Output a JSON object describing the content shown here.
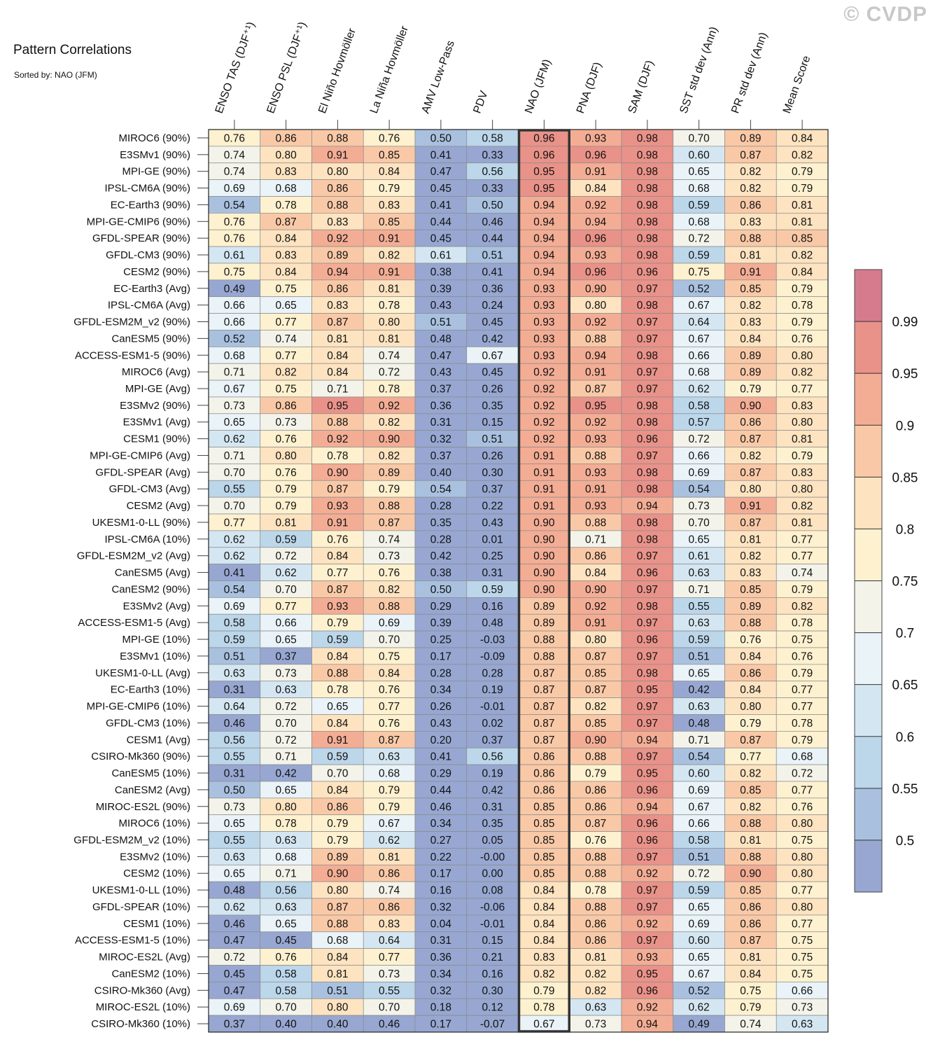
{
  "chart_data": {
    "type": "heatmap",
    "title": "Pattern Correlations",
    "subtitle": "Sorted by: NAO (JFM)",
    "watermark": "© CVDP",
    "highlight_column": "NAO (JFM)",
    "columns": [
      "ENSO TAS (DJF⁺¹)",
      "ENSO PSL (DJF⁺¹)",
      "El Niño Hovmöller",
      "La Niña Hovmöller",
      "AMV Low-Pass",
      "PDV",
      "NAO (JFM)",
      "PNA (DJF)",
      "SAM (DJF)",
      "SST std dev (Ann)",
      "PR std dev (Ann)",
      "Mean Score"
    ],
    "rows": [
      {
        "label": "MIROC6 (90%)",
        "values": [
          "0.76",
          "0.86",
          "0.88",
          "0.76",
          "0.50",
          "0.58",
          "0.96",
          "0.93",
          "0.98",
          "0.70",
          "0.89",
          "0.84"
        ]
      },
      {
        "label": "E3SMv1 (90%)",
        "values": [
          "0.74",
          "0.80",
          "0.91",
          "0.85",
          "0.41",
          "0.33",
          "0.96",
          "0.96",
          "0.98",
          "0.60",
          "0.87",
          "0.82"
        ]
      },
      {
        "label": "MPI-GE (90%)",
        "values": [
          "0.74",
          "0.83",
          "0.80",
          "0.84",
          "0.47",
          "0.56",
          "0.95",
          "0.91",
          "0.98",
          "0.65",
          "0.82",
          "0.79"
        ]
      },
      {
        "label": "IPSL-CM6A (90%)",
        "values": [
          "0.69",
          "0.68",
          "0.86",
          "0.79",
          "0.45",
          "0.33",
          "0.95",
          "0.84",
          "0.98",
          "0.68",
          "0.82",
          "0.79"
        ]
      },
      {
        "label": "EC-Earth3 (90%)",
        "values": [
          "0.54",
          "0.78",
          "0.88",
          "0.83",
          "0.41",
          "0.50",
          "0.94",
          "0.92",
          "0.98",
          "0.59",
          "0.86",
          "0.81"
        ]
      },
      {
        "label": "MPI-GE-CMIP6 (90%)",
        "values": [
          "0.76",
          "0.87",
          "0.83",
          "0.85",
          "0.44",
          "0.46",
          "0.94",
          "0.94",
          "0.98",
          "0.68",
          "0.83",
          "0.81"
        ]
      },
      {
        "label": "GFDL-SPEAR (90%)",
        "values": [
          "0.76",
          "0.84",
          "0.92",
          "0.91",
          "0.45",
          "0.44",
          "0.94",
          "0.96",
          "0.98",
          "0.72",
          "0.88",
          "0.85"
        ]
      },
      {
        "label": "GFDL-CM3 (90%)",
        "values": [
          "0.61",
          "0.83",
          "0.89",
          "0.82",
          "0.61",
          "0.51",
          "0.94",
          "0.93",
          "0.98",
          "0.59",
          "0.81",
          "0.82"
        ]
      },
      {
        "label": "CESM2 (90%)",
        "values": [
          "0.75",
          "0.84",
          "0.94",
          "0.91",
          "0.38",
          "0.41",
          "0.94",
          "0.96",
          "0.96",
          "0.75",
          "0.91",
          "0.84"
        ]
      },
      {
        "label": "EC-Earth3 (Avg)",
        "values": [
          "0.49",
          "0.75",
          "0.86",
          "0.81",
          "0.39",
          "0.36",
          "0.93",
          "0.90",
          "0.97",
          "0.52",
          "0.85",
          "0.79"
        ]
      },
      {
        "label": "IPSL-CM6A (Avg)",
        "values": [
          "0.66",
          "0.65",
          "0.83",
          "0.78",
          "0.43",
          "0.24",
          "0.93",
          "0.80",
          "0.98",
          "0.67",
          "0.82",
          "0.78"
        ]
      },
      {
        "label": "GFDL-ESM2M_v2 (90%)",
        "values": [
          "0.66",
          "0.77",
          "0.87",
          "0.80",
          "0.51",
          "0.45",
          "0.93",
          "0.92",
          "0.97",
          "0.64",
          "0.83",
          "0.79"
        ]
      },
      {
        "label": "CanESM5 (90%)",
        "values": [
          "0.52",
          "0.74",
          "0.81",
          "0.81",
          "0.48",
          "0.42",
          "0.93",
          "0.88",
          "0.97",
          "0.67",
          "0.84",
          "0.76"
        ]
      },
      {
        "label": "ACCESS-ESM1-5 (90%)",
        "values": [
          "0.68",
          "0.77",
          "0.84",
          "0.74",
          "0.47",
          "0.67",
          "0.93",
          "0.94",
          "0.98",
          "0.66",
          "0.89",
          "0.80"
        ]
      },
      {
        "label": "MIROC6 (Avg)",
        "values": [
          "0.71",
          "0.82",
          "0.84",
          "0.72",
          "0.43",
          "0.45",
          "0.92",
          "0.91",
          "0.97",
          "0.68",
          "0.89",
          "0.82"
        ]
      },
      {
        "label": "MPI-GE (Avg)",
        "values": [
          "0.67",
          "0.75",
          "0.71",
          "0.78",
          "0.37",
          "0.26",
          "0.92",
          "0.87",
          "0.97",
          "0.62",
          "0.79",
          "0.77"
        ]
      },
      {
        "label": "E3SMv2 (90%)",
        "values": [
          "0.73",
          "0.86",
          "0.95",
          "0.92",
          "0.36",
          "0.35",
          "0.92",
          "0.95",
          "0.98",
          "0.58",
          "0.90",
          "0.83"
        ]
      },
      {
        "label": "E3SMv1 (Avg)",
        "values": [
          "0.65",
          "0.73",
          "0.88",
          "0.82",
          "0.31",
          "0.15",
          "0.92",
          "0.92",
          "0.98",
          "0.57",
          "0.86",
          "0.80"
        ]
      },
      {
        "label": "CESM1 (90%)",
        "values": [
          "0.62",
          "0.76",
          "0.92",
          "0.90",
          "0.32",
          "0.51",
          "0.92",
          "0.93",
          "0.96",
          "0.72",
          "0.87",
          "0.81"
        ]
      },
      {
        "label": "MPI-GE-CMIP6 (Avg)",
        "values": [
          "0.71",
          "0.80",
          "0.78",
          "0.82",
          "0.37",
          "0.26",
          "0.91",
          "0.88",
          "0.97",
          "0.66",
          "0.82",
          "0.79"
        ]
      },
      {
        "label": "GFDL-SPEAR (Avg)",
        "values": [
          "0.70",
          "0.76",
          "0.90",
          "0.89",
          "0.40",
          "0.30",
          "0.91",
          "0.93",
          "0.98",
          "0.69",
          "0.87",
          "0.83"
        ]
      },
      {
        "label": "GFDL-CM3 (Avg)",
        "values": [
          "0.55",
          "0.79",
          "0.87",
          "0.79",
          "0.54",
          "0.37",
          "0.91",
          "0.91",
          "0.98",
          "0.54",
          "0.80",
          "0.80"
        ]
      },
      {
        "label": "CESM2 (Avg)",
        "values": [
          "0.70",
          "0.79",
          "0.93",
          "0.88",
          "0.28",
          "0.22",
          "0.91",
          "0.93",
          "0.94",
          "0.73",
          "0.91",
          "0.82"
        ]
      },
      {
        "label": "UKESM1-0-LL (90%)",
        "values": [
          "0.77",
          "0.81",
          "0.91",
          "0.87",
          "0.35",
          "0.43",
          "0.90",
          "0.88",
          "0.98",
          "0.70",
          "0.87",
          "0.81"
        ]
      },
      {
        "label": "IPSL-CM6A (10%)",
        "values": [
          "0.62",
          "0.59",
          "0.76",
          "0.74",
          "0.28",
          "0.01",
          "0.90",
          "0.71",
          "0.98",
          "0.65",
          "0.81",
          "0.77"
        ]
      },
      {
        "label": "GFDL-ESM2M_v2 (Avg)",
        "values": [
          "0.62",
          "0.72",
          "0.84",
          "0.73",
          "0.42",
          "0.25",
          "0.90",
          "0.86",
          "0.97",
          "0.61",
          "0.82",
          "0.77"
        ]
      },
      {
        "label": "CanESM5 (Avg)",
        "values": [
          "0.41",
          "0.62",
          "0.77",
          "0.76",
          "0.38",
          "0.31",
          "0.90",
          "0.84",
          "0.96",
          "0.63",
          "0.83",
          "0.74"
        ]
      },
      {
        "label": "CanESM2 (90%)",
        "values": [
          "0.54",
          "0.70",
          "0.87",
          "0.82",
          "0.50",
          "0.59",
          "0.90",
          "0.90",
          "0.97",
          "0.71",
          "0.85",
          "0.79"
        ]
      },
      {
        "label": "E3SMv2 (Avg)",
        "values": [
          "0.69",
          "0.77",
          "0.93",
          "0.88",
          "0.29",
          "0.16",
          "0.89",
          "0.92",
          "0.98",
          "0.55",
          "0.89",
          "0.82"
        ]
      },
      {
        "label": "ACCESS-ESM1-5 (Avg)",
        "values": [
          "0.58",
          "0.66",
          "0.79",
          "0.69",
          "0.39",
          "0.48",
          "0.89",
          "0.91",
          "0.97",
          "0.63",
          "0.88",
          "0.78"
        ]
      },
      {
        "label": "MPI-GE (10%)",
        "values": [
          "0.59",
          "0.65",
          "0.59",
          "0.70",
          "0.25",
          "-0.03",
          "0.88",
          "0.80",
          "0.96",
          "0.59",
          "0.76",
          "0.75"
        ]
      },
      {
        "label": "E3SMv1 (10%)",
        "values": [
          "0.51",
          "0.37",
          "0.84",
          "0.75",
          "0.17",
          "-0.09",
          "0.88",
          "0.87",
          "0.97",
          "0.51",
          "0.84",
          "0.76"
        ]
      },
      {
        "label": "UKESM1-0-LL (Avg)",
        "values": [
          "0.63",
          "0.73",
          "0.88",
          "0.84",
          "0.28",
          "0.28",
          "0.87",
          "0.85",
          "0.98",
          "0.65",
          "0.86",
          "0.79"
        ]
      },
      {
        "label": "EC-Earth3 (10%)",
        "values": [
          "0.31",
          "0.63",
          "0.78",
          "0.76",
          "0.34",
          "0.19",
          "0.87",
          "0.87",
          "0.95",
          "0.42",
          "0.84",
          "0.77"
        ]
      },
      {
        "label": "MPI-GE-CMIP6 (10%)",
        "values": [
          "0.64",
          "0.72",
          "0.65",
          "0.77",
          "0.26",
          "-0.01",
          "0.87",
          "0.82",
          "0.97",
          "0.63",
          "0.80",
          "0.77"
        ]
      },
      {
        "label": "GFDL-CM3 (10%)",
        "values": [
          "0.46",
          "0.70",
          "0.84",
          "0.76",
          "0.43",
          "0.02",
          "0.87",
          "0.85",
          "0.97",
          "0.48",
          "0.79",
          "0.78"
        ]
      },
      {
        "label": "CESM1 (Avg)",
        "values": [
          "0.56",
          "0.72",
          "0.91",
          "0.87",
          "0.20",
          "0.37",
          "0.87",
          "0.90",
          "0.94",
          "0.71",
          "0.87",
          "0.79"
        ]
      },
      {
        "label": "CSIRO-Mk360 (90%)",
        "values": [
          "0.55",
          "0.71",
          "0.59",
          "0.63",
          "0.41",
          "0.56",
          "0.86",
          "0.88",
          "0.97",
          "0.54",
          "0.77",
          "0.68"
        ]
      },
      {
        "label": "CanESM5 (10%)",
        "values": [
          "0.31",
          "0.42",
          "0.70",
          "0.68",
          "0.29",
          "0.19",
          "0.86",
          "0.79",
          "0.95",
          "0.60",
          "0.82",
          "0.72"
        ]
      },
      {
        "label": "CanESM2 (Avg)",
        "values": [
          "0.50",
          "0.65",
          "0.84",
          "0.79",
          "0.44",
          "0.42",
          "0.86",
          "0.86",
          "0.96",
          "0.69",
          "0.85",
          "0.77"
        ]
      },
      {
        "label": "MIROC-ES2L (90%)",
        "values": [
          "0.73",
          "0.80",
          "0.86",
          "0.79",
          "0.46",
          "0.31",
          "0.85",
          "0.86",
          "0.94",
          "0.67",
          "0.82",
          "0.76"
        ]
      },
      {
        "label": "MIROC6 (10%)",
        "values": [
          "0.65",
          "0.78",
          "0.79",
          "0.67",
          "0.34",
          "0.35",
          "0.85",
          "0.87",
          "0.96",
          "0.66",
          "0.88",
          "0.80"
        ]
      },
      {
        "label": "GFDL-ESM2M_v2 (10%)",
        "values": [
          "0.55",
          "0.63",
          "0.79",
          "0.62",
          "0.27",
          "0.05",
          "0.85",
          "0.76",
          "0.96",
          "0.58",
          "0.81",
          "0.75"
        ]
      },
      {
        "label": "E3SMv2 (10%)",
        "values": [
          "0.63",
          "0.68",
          "0.89",
          "0.81",
          "0.22",
          "-0.00",
          "0.85",
          "0.88",
          "0.97",
          "0.51",
          "0.88",
          "0.80"
        ]
      },
      {
        "label": "CESM2 (10%)",
        "values": [
          "0.65",
          "0.71",
          "0.90",
          "0.86",
          "0.17",
          "0.00",
          "0.85",
          "0.88",
          "0.92",
          "0.72",
          "0.90",
          "0.80"
        ]
      },
      {
        "label": "UKESM1-0-LL (10%)",
        "values": [
          "0.48",
          "0.56",
          "0.80",
          "0.74",
          "0.16",
          "0.08",
          "0.84",
          "0.78",
          "0.97",
          "0.59",
          "0.85",
          "0.77"
        ]
      },
      {
        "label": "GFDL-SPEAR (10%)",
        "values": [
          "0.62",
          "0.63",
          "0.87",
          "0.86",
          "0.32",
          "-0.06",
          "0.84",
          "0.88",
          "0.97",
          "0.65",
          "0.86",
          "0.80"
        ]
      },
      {
        "label": "CESM1 (10%)",
        "values": [
          "0.46",
          "0.65",
          "0.88",
          "0.83",
          "0.04",
          "-0.01",
          "0.84",
          "0.86",
          "0.92",
          "0.69",
          "0.86",
          "0.77"
        ]
      },
      {
        "label": "ACCESS-ESM1-5 (10%)",
        "values": [
          "0.47",
          "0.45",
          "0.68",
          "0.64",
          "0.31",
          "0.15",
          "0.84",
          "0.86",
          "0.97",
          "0.60",
          "0.87",
          "0.75"
        ]
      },
      {
        "label": "MIROC-ES2L (Avg)",
        "values": [
          "0.72",
          "0.76",
          "0.84",
          "0.77",
          "0.36",
          "0.21",
          "0.83",
          "0.81",
          "0.93",
          "0.65",
          "0.81",
          "0.75"
        ]
      },
      {
        "label": "CanESM2 (10%)",
        "values": [
          "0.45",
          "0.58",
          "0.81",
          "0.73",
          "0.34",
          "0.16",
          "0.82",
          "0.82",
          "0.95",
          "0.67",
          "0.84",
          "0.75"
        ]
      },
      {
        "label": "CSIRO-Mk360 (Avg)",
        "values": [
          "0.47",
          "0.58",
          "0.51",
          "0.55",
          "0.32",
          "0.30",
          "0.79",
          "0.82",
          "0.96",
          "0.52",
          "0.75",
          "0.66"
        ]
      },
      {
        "label": "MIROC-ES2L (10%)",
        "values": [
          "0.69",
          "0.70",
          "0.80",
          "0.70",
          "0.18",
          "0.12",
          "0.78",
          "0.63",
          "0.92",
          "0.62",
          "0.79",
          "0.73"
        ]
      },
      {
        "label": "CSIRO-Mk360 (10%)",
        "values": [
          "0.37",
          "0.40",
          "0.40",
          "0.46",
          "0.17",
          "-0.07",
          "0.67",
          "0.73",
          "0.94",
          "0.49",
          "0.74",
          "0.63"
        ]
      }
    ],
    "colorbar": {
      "labels": [
        "0.99",
        "0.95",
        "0.9",
        "0.85",
        "0.8",
        "0.75",
        "0.7",
        "0.65",
        "0.6",
        "0.55",
        "0.5"
      ],
      "thresholds": [
        0.5,
        0.55,
        0.6,
        0.65,
        0.7,
        0.75,
        0.8,
        0.85,
        0.9,
        0.95,
        0.99
      ],
      "colors": [
        "#97a7d1",
        "#a9c1df",
        "#bcd6ea",
        "#d4e6f1",
        "#e9f3f8",
        "#f3f3ea",
        "#fdf1cf",
        "#fde3c0",
        "#f9c9a7",
        "#f3ad95",
        "#e99289",
        "#d67b8e"
      ]
    }
  }
}
